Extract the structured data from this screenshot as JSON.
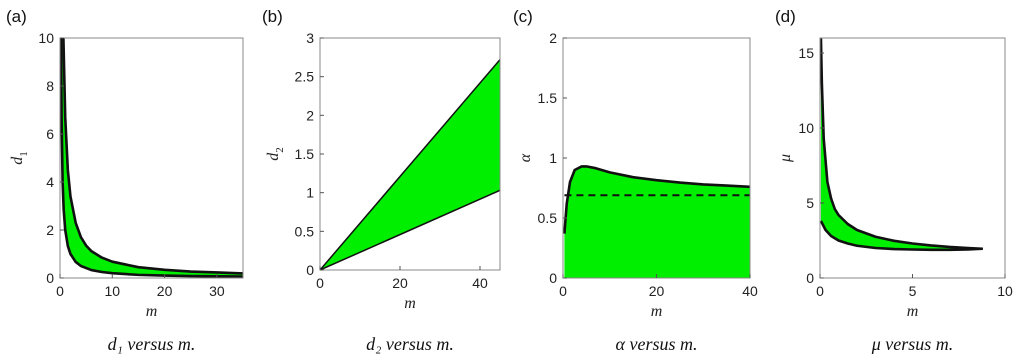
{
  "chart_data": [
    {
      "type": "area",
      "panel_label": "(a)",
      "xlabel": "m",
      "ylabel": "d",
      "ylabel_sub": "1",
      "caption": "d₁ versus m.",
      "xlim": [
        0,
        35
      ],
      "ylim": [
        0,
        10
      ],
      "xticks": [
        0,
        10,
        20,
        30
      ],
      "yticks": [
        0,
        2,
        4,
        6,
        8,
        10
      ],
      "fill_color": "#00ee00",
      "upper": {
        "x": [
          0.65,
          1,
          1.5,
          2,
          3,
          4,
          5,
          6,
          8,
          10,
          15,
          20,
          25,
          30,
          35
        ],
        "y": [
          10,
          6.7,
          4.5,
          3.4,
          2.3,
          1.7,
          1.35,
          1.12,
          0.85,
          0.68,
          0.45,
          0.34,
          0.27,
          0.23,
          0.19
        ]
      },
      "lower": {
        "x": [
          0.2,
          0.3,
          0.5,
          0.7,
          1,
          1.5,
          2,
          3,
          4,
          6,
          8,
          10,
          15,
          20,
          25,
          30,
          35
        ],
        "y": [
          10,
          6.7,
          4,
          2.86,
          2,
          1.33,
          1,
          0.67,
          0.5,
          0.33,
          0.25,
          0.2,
          0.13,
          0.1,
          0.08,
          0.07,
          0.06
        ]
      }
    },
    {
      "type": "area",
      "panel_label": "(b)",
      "xlabel": "m",
      "ylabel": "d",
      "ylabel_sub": "2",
      "caption": "d₂ versus m.",
      "xlim": [
        0,
        45
      ],
      "ylim": [
        0,
        3
      ],
      "xticks": [
        0,
        20,
        40
      ],
      "yticks": [
        0,
        0.5,
        1,
        1.5,
        2,
        2.5,
        3
      ],
      "fill_color": "#00ee00",
      "upper": {
        "x": [
          0,
          45
        ],
        "y": [
          0,
          2.72
        ]
      },
      "lower": {
        "x": [
          0,
          45
        ],
        "y": [
          0,
          1.03
        ]
      }
    },
    {
      "type": "area",
      "panel_label": "(c)",
      "xlabel": "m",
      "ylabel": "α",
      "caption": "α versus m.",
      "xlim": [
        0,
        40
      ],
      "ylim": [
        0,
        2
      ],
      "xticks": [
        0,
        20,
        40
      ],
      "yticks": [
        0,
        0.5,
        1,
        1.5,
        2
      ],
      "fill_color": "#00ee00",
      "upper": {
        "x": [
          0.3,
          0.8,
          1.5,
          2.5,
          4,
          5,
          7,
          10,
          15,
          20,
          25,
          30,
          35,
          40
        ],
        "y": [
          0.37,
          0.62,
          0.8,
          0.9,
          0.93,
          0.93,
          0.915,
          0.88,
          0.84,
          0.815,
          0.795,
          0.78,
          0.77,
          0.76
        ]
      },
      "lower": {
        "x": [
          0.3,
          40
        ],
        "y": [
          0,
          0
        ]
      },
      "reference_line": {
        "y": 0.69,
        "x": [
          0.3,
          40
        ],
        "style": "dashed"
      }
    },
    {
      "type": "area",
      "panel_label": "(d)",
      "xlabel": "m",
      "ylabel": "μ",
      "caption": "μ versus m.",
      "xlim": [
        0,
        10
      ],
      "ylim": [
        0,
        16
      ],
      "xticks": [
        0,
        5,
        10
      ],
      "yticks": [
        0,
        5,
        10,
        15
      ],
      "fill_color": "#00ee00",
      "upper": {
        "x": [
          0.05,
          0.1,
          0.2,
          0.4,
          0.6,
          0.8,
          1,
          1.5,
          2,
          3,
          4,
          5,
          6,
          7,
          8,
          8.8
        ],
        "y": [
          16,
          13,
          9.3,
          6.4,
          5.3,
          4.6,
          4.2,
          3.6,
          3.2,
          2.75,
          2.48,
          2.3,
          2.17,
          2.07,
          2.0,
          1.95
        ]
      },
      "lower": {
        "x": [
          0.05,
          0.3,
          0.6,
          1,
          1.5,
          2,
          3,
          4,
          5,
          6,
          7,
          8,
          8.8
        ],
        "y": [
          3.8,
          3.2,
          2.8,
          2.5,
          2.3,
          2.15,
          2.0,
          1.93,
          1.9,
          1.88,
          1.88,
          1.9,
          1.95
        ]
      }
    }
  ]
}
